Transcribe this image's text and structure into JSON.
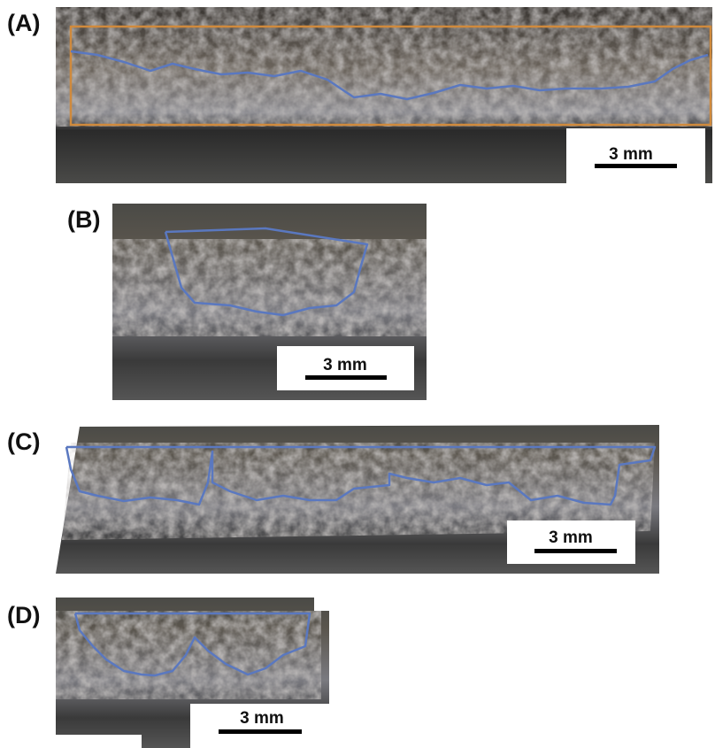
{
  "panels": [
    {
      "label": "(A)",
      "scale_bar": "3 mm"
    },
    {
      "label": "(B)",
      "scale_bar": "3 mm"
    },
    {
      "label": "(C)",
      "scale_bar": "3 mm"
    },
    {
      "label": "(D)",
      "scale_bar": "3 mm"
    }
  ]
}
